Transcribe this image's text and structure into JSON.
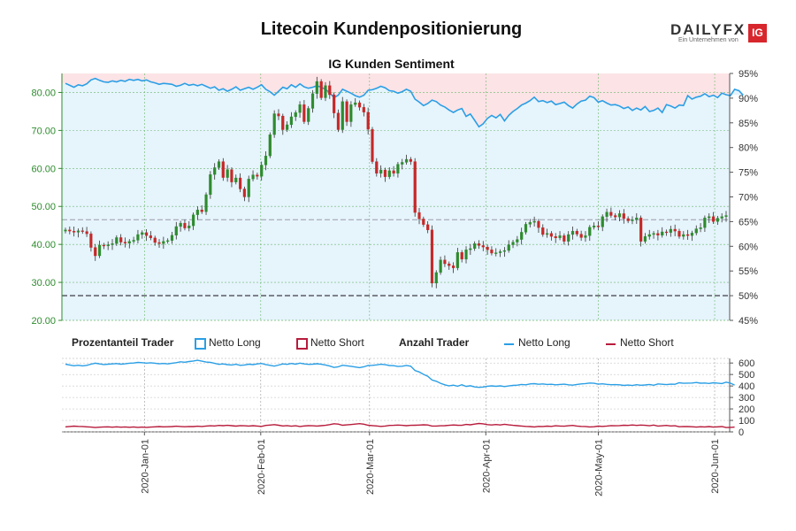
{
  "page_title": "Litecoin Kundenpositionierung",
  "logo": {
    "brand": "DAILYFX",
    "tagline": "Ein Unternehmen von",
    "ig": "IG"
  },
  "colors": {
    "up": "#2e8b2e",
    "down": "#c62828",
    "long": "#2a9fe5",
    "short": "#b71c3c",
    "long_fill": "#e6f4fc",
    "short_fill": "#fce3e6"
  },
  "chart_data": [
    {
      "type": "candlestick",
      "title": "IG Kunden Sentiment",
      "ylim": [
        20,
        85
      ],
      "y_ticks": [
        "20.00",
        "30.00",
        "40.00",
        "50.00",
        "60.00",
        "70.00",
        "80.00"
      ],
      "y2_ticks": [
        "45%",
        "50%",
        "55%",
        "60%",
        "65%",
        "70%",
        "75%",
        "80%",
        "85%",
        "90%",
        "95%"
      ],
      "y2_range": [
        45,
        95
      ],
      "x_start": "2019-12-10",
      "x_end": "2020-06-05",
      "x_ticks": [
        "2020-Jan-01",
        "2020-Feb-01",
        "2020-Mar-01",
        "2020-Apr-01",
        "2020-May-01",
        "2020-Jun-01"
      ],
      "reference_levels": [
        46.5,
        26.5
      ],
      "price_close": [
        43.8,
        43.5,
        43.2,
        43.6,
        43.4,
        42.8,
        39.2,
        37.0,
        39.8,
        39.6,
        39.9,
        40.2,
        41.8,
        40.6,
        40.3,
        40.8,
        41.1,
        42.6,
        43.1,
        42.3,
        41.7,
        40.5,
        40.2,
        40.8,
        41.0,
        42.4,
        44.7,
        45.6,
        44.3,
        44.9,
        47.8,
        49.1,
        48.6,
        53.1,
        58.4,
        60.2,
        61.8,
        57.6,
        59.7,
        56.4,
        57.5,
        54.6,
        52.5,
        57.2,
        58.3,
        57.9,
        60.9,
        63.3,
        68.9,
        74.4,
        73.8,
        70.2,
        71.5,
        73.6,
        74.7,
        76.8,
        72.3,
        75.8,
        79.7,
        82.9,
        78.6,
        81.8,
        79.4,
        74.6,
        70.2,
        77.6,
        72.3,
        76.8,
        77.3,
        76.1,
        74.8,
        70.3,
        61.8,
        58.7,
        59.6,
        57.8,
        59.4,
        58.7,
        61.1,
        61.6,
        62.4,
        61.8,
        48.4,
        46.7,
        45.2,
        43.8,
        29.8,
        32.6,
        35.9,
        34.9,
        34.4,
        33.8,
        37.9,
        36.1,
        38.6,
        38.9,
        40.2,
        39.7,
        39.3,
        38.6,
        37.7,
        37.8,
        38.1,
        38.4,
        39.9,
        40.6,
        41.3,
        43.2,
        45.3,
        45.8,
        46.1,
        44.4,
        42.6,
        42.9,
        42.1,
        41.7,
        42.3,
        40.8,
        42.6,
        43.5,
        42.7,
        41.8,
        42.3,
        44.5,
        44.9,
        44.6,
        47.3,
        48.5,
        47.6,
        47.2,
        48.1,
        46.8,
        46.2,
        46.5,
        47.0,
        40.8,
        42.1,
        42.6,
        42.9,
        42.4,
        43.3,
        43.1,
        44.0,
        43.5,
        42.1,
        42.6,
        42.3,
        43.0,
        44.1,
        44.4,
        47.0,
        47.3,
        46.0,
        46.9,
        47.3,
        47.6
      ],
      "pct_long": [
        93.0,
        92.6,
        92.2,
        92.7,
        92.5,
        92.9,
        93.7,
        94.0,
        93.6,
        93.3,
        93.2,
        93.5,
        93.3,
        93.6,
        93.4,
        93.8,
        93.6,
        93.8,
        93.5,
        93.7,
        93.3,
        93.1,
        92.8,
        93.0,
        92.9,
        92.8,
        92.4,
        92.6,
        93.0,
        92.6,
        92.8,
        92.5,
        92.8,
        92.4,
        92.0,
        92.3,
        91.6,
        91.9,
        91.4,
        91.8,
        92.3,
        91.6,
        91.9,
        92.2,
        91.8,
        92.2,
        92.7,
        91.8,
        91.3,
        90.6,
        91.4,
        92.2,
        91.9,
        92.7,
        92.2,
        92.9,
        92.3,
        92.0,
        92.2,
        92.5,
        92.2,
        91.8,
        91.1,
        90.1,
        90.6,
        91.8,
        91.4,
        91.0,
        90.5,
        90.2,
        90.6,
        91.6,
        91.7,
        92.0,
        92.4,
        92.1,
        91.5,
        91.4,
        91.0,
        91.3,
        91.8,
        91.4,
        89.8,
        89.2,
        88.5,
        88.9,
        89.6,
        89.3,
        88.6,
        88.2,
        87.6,
        87.1,
        87.6,
        87.9,
        86.3,
        86.8,
        85.5,
        84.2,
        84.8,
        85.9,
        86.5,
        86.0,
        86.7,
        85.4,
        86.5,
        87.3,
        87.9,
        88.6,
        89.0,
        89.5,
        90.2,
        89.3,
        89.5,
        89.1,
        89.4,
        88.7,
        88.9,
        89.2,
        88.5,
        88.0,
        88.8,
        89.4,
        89.6,
        90.4,
        90.1,
        89.2,
        89.5,
        89.0,
        88.6,
        88.7,
        88.4,
        87.9,
        88.2,
        87.5,
        88.0,
        87.6,
        88.3,
        87.3,
        87.5,
        88.0,
        87.1,
        88.7,
        88.4,
        88.0,
        88.6,
        88.5,
        90.5,
        89.8,
        90.2,
        90.4,
        90.9,
        90.3,
        90.6,
        90.1,
        91.0,
        90.7,
        90.5,
        91.8,
        91.5,
        90.6
      ],
      "net_long_traders": [
        590,
        583,
        576,
        581,
        575,
        580,
        590,
        598,
        592,
        587,
        590,
        592,
        595,
        590,
        593,
        598,
        600,
        605,
        603,
        599,
        602,
        598,
        593,
        596,
        592,
        598,
        603,
        611,
        607,
        613,
        618,
        624,
        616,
        608,
        605,
        597,
        588,
        592,
        586,
        583,
        589,
        580,
        583,
        590,
        586,
        592,
        596,
        586,
        580,
        573,
        582,
        592,
        588,
        596,
        590,
        599,
        592,
        588,
        590,
        594,
        589,
        583,
        574,
        561,
        567,
        581,
        576,
        571,
        565,
        560,
        567,
        578,
        580,
        584,
        589,
        585,
        578,
        577,
        570,
        572,
        579,
        572,
        535,
        522,
        501,
        485,
        452,
        441,
        423,
        410,
        401,
        407,
        398,
        411,
        396,
        402,
        392,
        388,
        391,
        398,
        401,
        397,
        401,
        395,
        400,
        405,
        407,
        413,
        410,
        418,
        420,
        415,
        418,
        413,
        415,
        410,
        413,
        416,
        410,
        407,
        413,
        418,
        421,
        426,
        423,
        416,
        419,
        414,
        411,
        412,
        410,
        405,
        408,
        404,
        411,
        406,
        409,
        413,
        406,
        418,
        415,
        412,
        416,
        415,
        428,
        423,
        425,
        426,
        430,
        424,
        426,
        422,
        428,
        425,
        421,
        433,
        425,
        408
      ],
      "net_short_traders": [
        44,
        47,
        50,
        48,
        47,
        44,
        42,
        38,
        41,
        43,
        44,
        41,
        44,
        41,
        43,
        40,
        43,
        39,
        42,
        39,
        42,
        44,
        46,
        44,
        45,
        46,
        49,
        47,
        45,
        47,
        46,
        49,
        47,
        51,
        53,
        52,
        56,
        54,
        57,
        54,
        50,
        55,
        53,
        51,
        54,
        51,
        48,
        56,
        59,
        63,
        58,
        52,
        55,
        49,
        53,
        47,
        52,
        54,
        53,
        51,
        54,
        57,
        63,
        71,
        68,
        58,
        61,
        64,
        68,
        72,
        67,
        58,
        55,
        52,
        48,
        51,
        56,
        57,
        59,
        57,
        54,
        57,
        58,
        59,
        62,
        60,
        51,
        51,
        53,
        54,
        57,
        60,
        58,
        57,
        65,
        62,
        68,
        73,
        70,
        63,
        60,
        64,
        60,
        66,
        61,
        57,
        54,
        51,
        48,
        46,
        43,
        48,
        47,
        50,
        48,
        53,
        51,
        49,
        53,
        56,
        51,
        48,
        47,
        43,
        45,
        50,
        48,
        51,
        55,
        53,
        55,
        58,
        56,
        60,
        56,
        59,
        57,
        53,
        59,
        51,
        53,
        56,
        52,
        53,
        45,
        47,
        46,
        45,
        42,
        45,
        43,
        46,
        42,
        44,
        46,
        38,
        39,
        42
      ]
    },
    {
      "type": "line",
      "title": "",
      "y_ticks": [
        "0",
        "100",
        "200",
        "300",
        "400",
        "500",
        "600"
      ],
      "ylim": [
        0,
        640
      ]
    }
  ],
  "legend": {
    "pct_header": "Prozentanteil Trader",
    "pct_long": "Netto Long",
    "pct_short": "Netto Short",
    "count_header": "Anzahl Trader",
    "count_long": "Netto Long",
    "count_short": "Netto Short"
  }
}
